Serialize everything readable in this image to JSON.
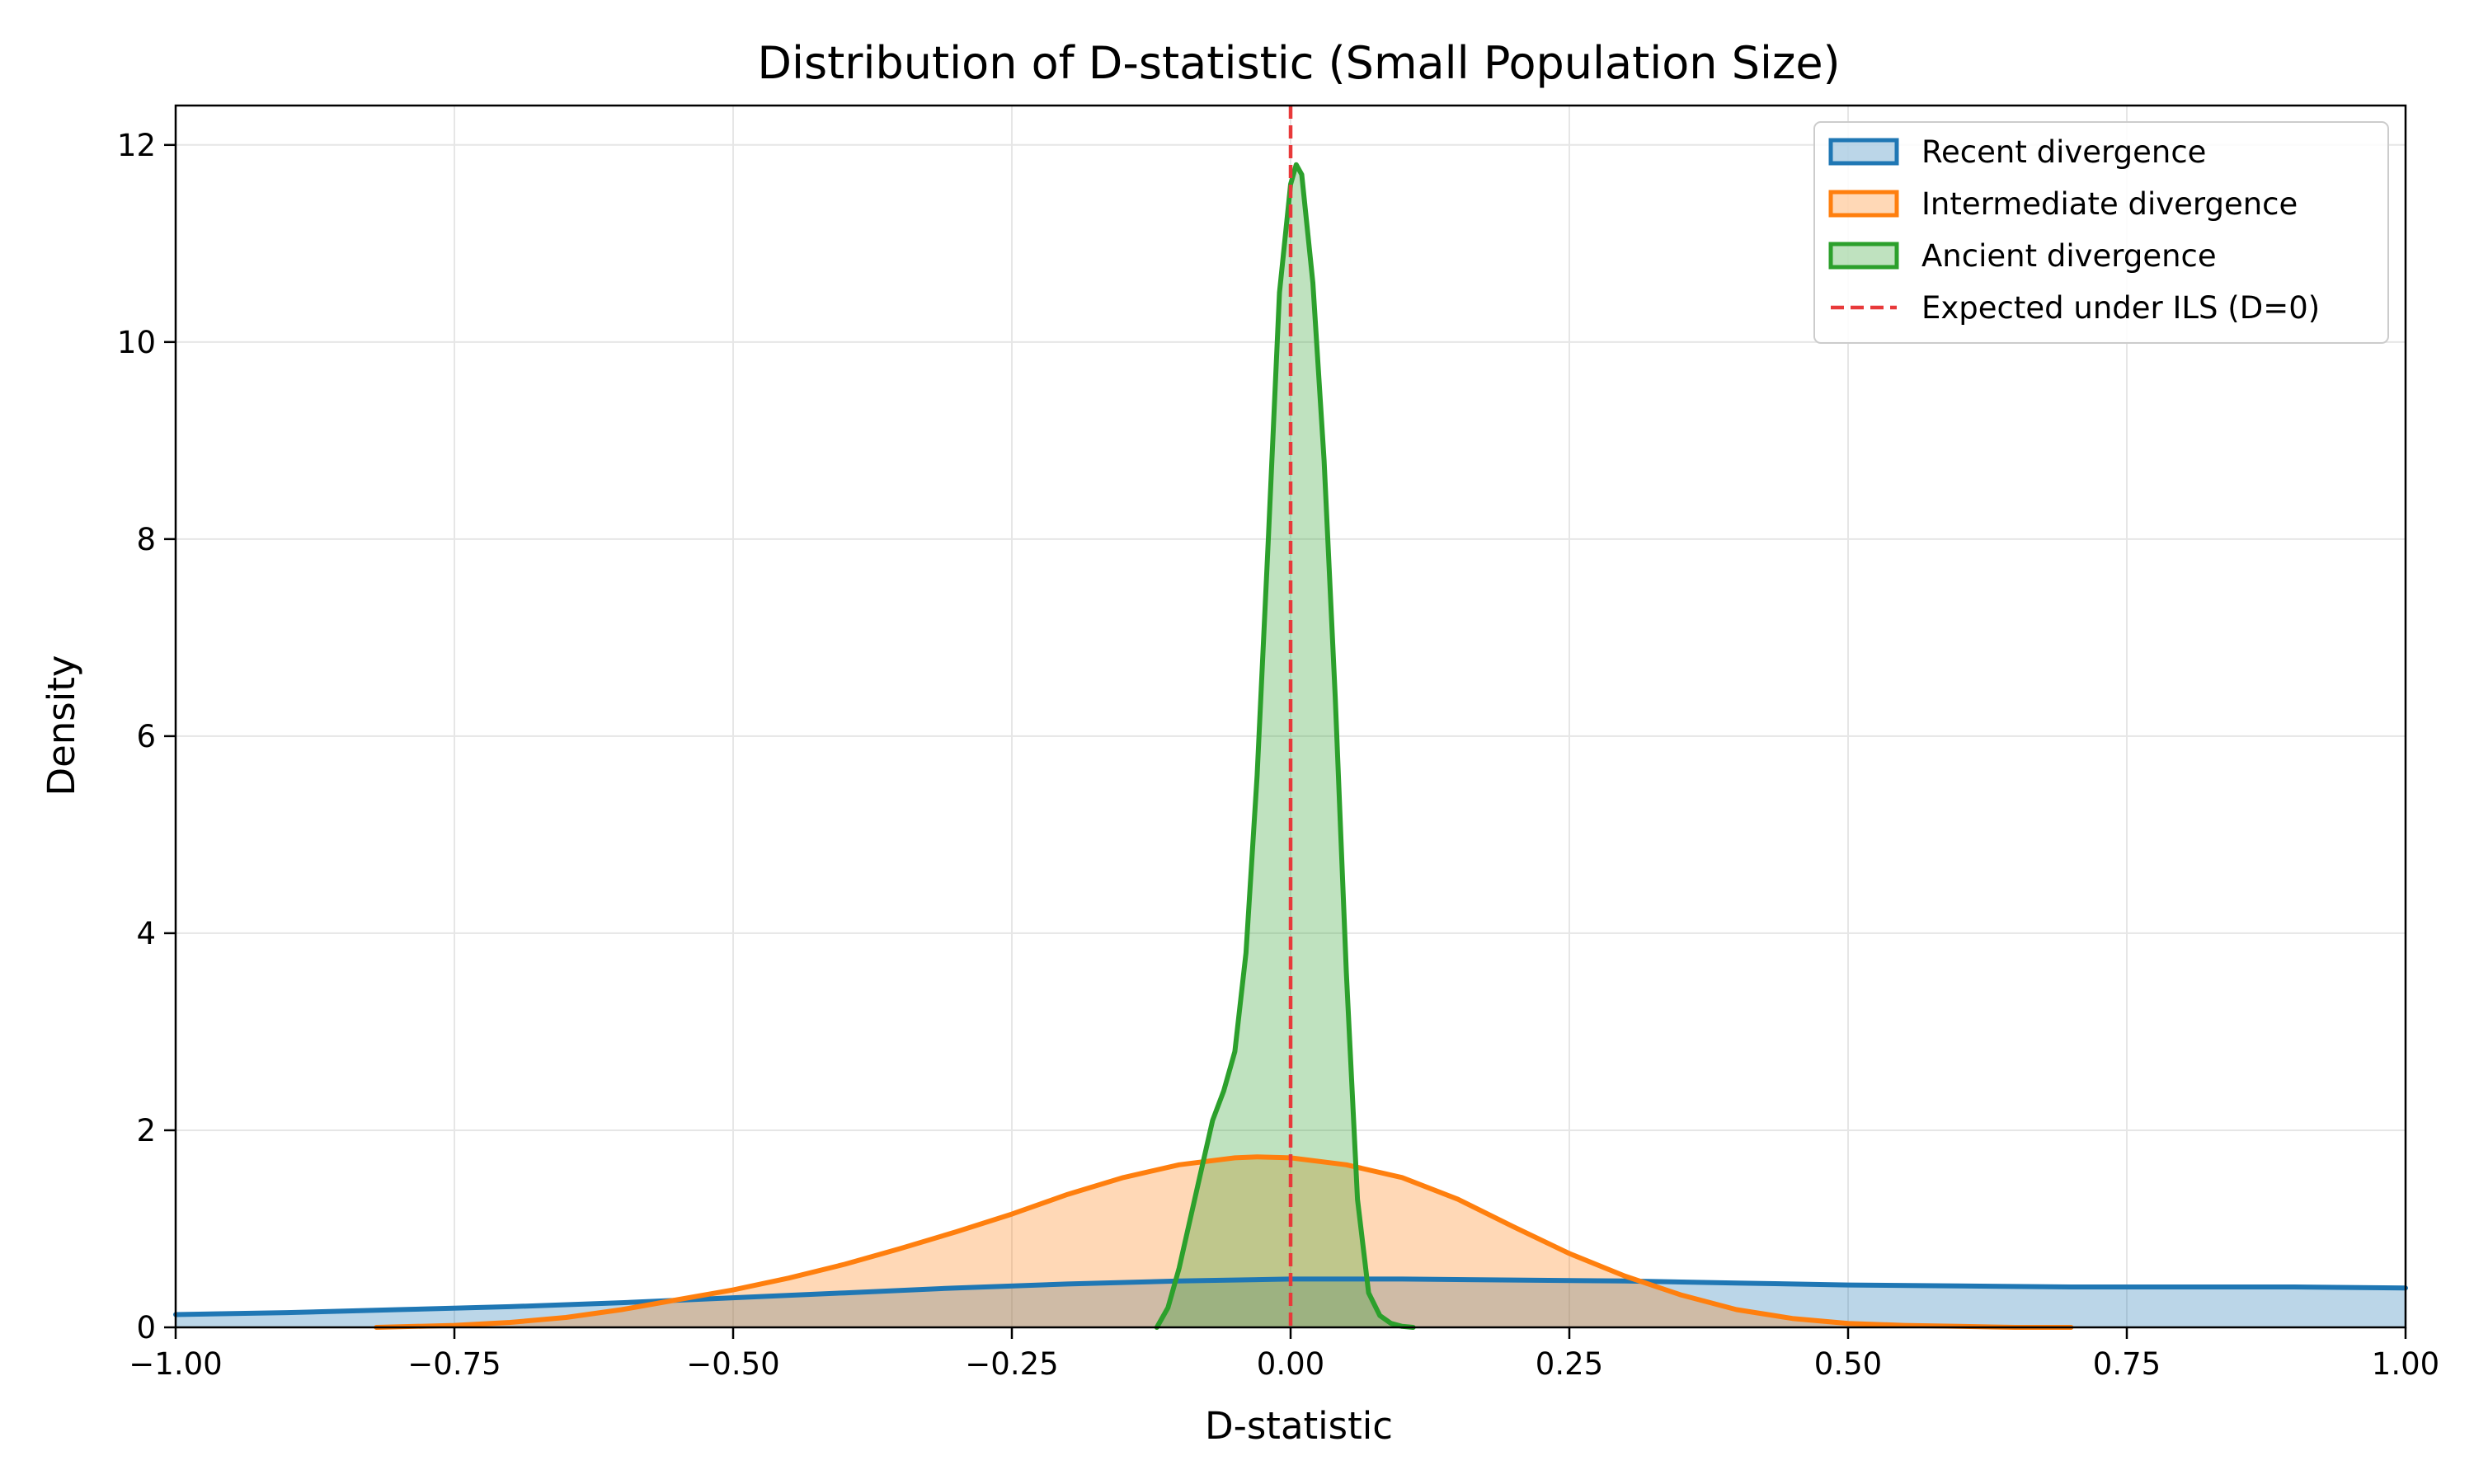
{
  "chart_data": {
    "type": "area",
    "title": "Distribution of D-statistic (Small Population Size)",
    "xlabel": "D-statistic",
    "ylabel": "Density",
    "xlim": [
      -1.0,
      1.0
    ],
    "ylim": [
      0,
      12.4
    ],
    "x_ticks": [
      -1.0,
      -0.75,
      -0.5,
      -0.25,
      0.0,
      0.25,
      0.5,
      0.75,
      1.0
    ],
    "x_tick_labels": [
      "−1.00",
      "−0.75",
      "−0.50",
      "−0.25",
      "0.00",
      "0.25",
      "0.50",
      "0.75",
      "1.00"
    ],
    "y_ticks": [
      0,
      2,
      4,
      6,
      8,
      10,
      12
    ],
    "y_tick_labels": [
      "0",
      "2",
      "4",
      "6",
      "8",
      "10",
      "12"
    ],
    "grid": true,
    "legend_position": "top-right",
    "series": [
      {
        "name": "Recent divergence",
        "color": "#1f77b4",
        "x": [
          -1.0,
          -0.9,
          -0.8,
          -0.7,
          -0.6,
          -0.5,
          -0.4,
          -0.3,
          -0.2,
          -0.1,
          0.0,
          0.1,
          0.2,
          0.3,
          0.4,
          0.5,
          0.6,
          0.7,
          0.8,
          0.9,
          1.0
        ],
        "values": [
          0.13,
          0.15,
          0.18,
          0.21,
          0.25,
          0.3,
          0.35,
          0.4,
          0.44,
          0.47,
          0.49,
          0.49,
          0.48,
          0.47,
          0.45,
          0.43,
          0.42,
          0.41,
          0.41,
          0.41,
          0.4
        ]
      },
      {
        "name": "Intermediate divergence",
        "color": "#ff7f0e",
        "x": [
          -0.82,
          -0.75,
          -0.7,
          -0.65,
          -0.6,
          -0.55,
          -0.5,
          -0.45,
          -0.4,
          -0.35,
          -0.3,
          -0.25,
          -0.2,
          -0.15,
          -0.1,
          -0.05,
          -0.03,
          0.0,
          0.05,
          0.1,
          0.15,
          0.2,
          0.25,
          0.3,
          0.35,
          0.4,
          0.45,
          0.5,
          0.55,
          0.6,
          0.65,
          0.7
        ],
        "values": [
          0.0,
          0.02,
          0.05,
          0.1,
          0.18,
          0.28,
          0.38,
          0.5,
          0.64,
          0.8,
          0.97,
          1.15,
          1.35,
          1.52,
          1.65,
          1.72,
          1.73,
          1.72,
          1.65,
          1.52,
          1.3,
          1.02,
          0.75,
          0.52,
          0.33,
          0.18,
          0.09,
          0.04,
          0.02,
          0.01,
          0.0,
          0.0
        ]
      },
      {
        "name": "Ancient divergence",
        "color": "#2ca02c",
        "x": [
          -0.12,
          -0.11,
          -0.1,
          -0.09,
          -0.08,
          -0.07,
          -0.06,
          -0.05,
          -0.04,
          -0.03,
          -0.02,
          -0.01,
          0.0,
          0.005,
          0.01,
          0.02,
          0.03,
          0.04,
          0.05,
          0.06,
          0.07,
          0.08,
          0.09,
          0.1,
          0.11
        ],
        "values": [
          0.0,
          0.2,
          0.6,
          1.1,
          1.6,
          2.1,
          2.4,
          2.8,
          3.8,
          5.6,
          8.0,
          10.5,
          11.6,
          11.8,
          11.7,
          10.6,
          8.8,
          6.4,
          3.6,
          1.3,
          0.35,
          0.12,
          0.04,
          0.01,
          0.0
        ]
      }
    ],
    "reference_line": {
      "name": "Expected under ILS (D=0)",
      "x": 0.0,
      "color": "#e8393a",
      "style": "dashed"
    }
  }
}
